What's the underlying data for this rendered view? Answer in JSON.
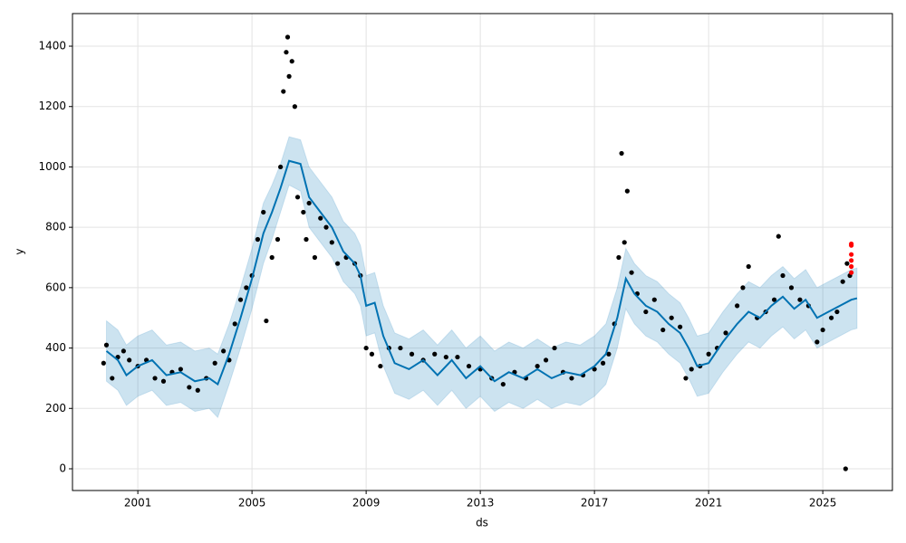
{
  "chart_data": {
    "type": "forecast",
    "xlabel": "ds",
    "ylabel": "y",
    "xlim": [
      1998.71,
      2027.44
    ],
    "ylim": [
      -72,
      1508
    ],
    "xticks": [
      2001,
      2005,
      2009,
      2013,
      2017,
      2021,
      2025
    ],
    "yticks": [
      0,
      200,
      400,
      600,
      800,
      1000,
      1200,
      1400
    ],
    "grid": true,
    "line_color": "#0072b2",
    "band_color": "#0072b2",
    "point_color": "#000000",
    "future_color": "#ff0000",
    "x": [
      1999.9,
      2000.3,
      2000.6,
      2001.0,
      2001.5,
      2002.0,
      2002.5,
      2003.0,
      2003.5,
      2003.8,
      2004.2,
      2004.6,
      2005.0,
      2005.4,
      2005.7,
      2006.0,
      2006.3,
      2006.7,
      2007.0,
      2007.4,
      2007.8,
      2008.2,
      2008.6,
      2008.8,
      2009.0,
      2009.3,
      2009.6,
      2010.0,
      2010.5,
      2011.0,
      2011.5,
      2012.0,
      2012.5,
      2013.0,
      2013.5,
      2014.0,
      2014.5,
      2015.0,
      2015.5,
      2016.0,
      2016.5,
      2017.0,
      2017.4,
      2017.8,
      2018.1,
      2018.4,
      2018.8,
      2019.2,
      2019.6,
      2020.0,
      2020.3,
      2020.6,
      2021.0,
      2021.5,
      2022.0,
      2022.4,
      2022.8,
      2023.2,
      2023.6,
      2024.0,
      2024.4,
      2024.8,
      2025.2,
      2025.6,
      2026.0,
      2026.2
    ],
    "yhat": [
      390,
      360,
      310,
      340,
      360,
      310,
      320,
      290,
      300,
      280,
      380,
      500,
      630,
      780,
      850,
      930,
      1020,
      1010,
      900,
      850,
      800,
      720,
      680,
      640,
      540,
      550,
      440,
      350,
      330,
      360,
      310,
      360,
      300,
      340,
      290,
      320,
      300,
      330,
      300,
      320,
      310,
      340,
      380,
      500,
      630,
      580,
      540,
      520,
      480,
      450,
      400,
      340,
      350,
      420,
      480,
      520,
      500,
      540,
      570,
      530,
      560,
      500,
      520,
      540,
      560,
      565
    ],
    "lower": [
      290,
      260,
      210,
      240,
      260,
      210,
      220,
      190,
      200,
      170,
      280,
      400,
      530,
      680,
      760,
      850,
      940,
      920,
      800,
      750,
      700,
      620,
      580,
      540,
      440,
      450,
      340,
      250,
      230,
      260,
      210,
      260,
      200,
      240,
      190,
      220,
      200,
      230,
      200,
      220,
      210,
      240,
      280,
      400,
      530,
      480,
      440,
      420,
      380,
      350,
      300,
      240,
      250,
      320,
      380,
      420,
      400,
      440,
      470,
      430,
      460,
      400,
      420,
      440,
      460,
      465
    ],
    "upper": [
      490,
      460,
      410,
      440,
      460,
      410,
      420,
      390,
      400,
      380,
      480,
      600,
      730,
      880,
      940,
      1010,
      1100,
      1090,
      1000,
      950,
      900,
      820,
      780,
      740,
      640,
      650,
      540,
      450,
      430,
      460,
      410,
      460,
      400,
      440,
      390,
      420,
      400,
      430,
      400,
      420,
      410,
      440,
      480,
      600,
      730,
      680,
      640,
      620,
      580,
      550,
      500,
      440,
      450,
      520,
      580,
      620,
      600,
      640,
      670,
      630,
      660,
      600,
      620,
      640,
      660,
      665
    ],
    "points": {
      "x": [
        1999.8,
        1999.9,
        2000.1,
        2000.3,
        2000.5,
        2000.7,
        2001.0,
        2001.3,
        2001.6,
        2001.9,
        2002.2,
        2002.5,
        2002.8,
        2003.1,
        2003.4,
        2003.7,
        2004.0,
        2004.2,
        2004.4,
        2004.6,
        2004.8,
        2005.0,
        2005.2,
        2005.4,
        2005.5,
        2005.7,
        2005.9,
        2006.0,
        2006.1,
        2006.2,
        2006.25,
        2006.3,
        2006.4,
        2006.5,
        2006.6,
        2006.8,
        2006.9,
        2007.0,
        2007.2,
        2007.4,
        2007.6,
        2007.8,
        2008.0,
        2008.3,
        2008.6,
        2008.8,
        2009.0,
        2009.2,
        2009.5,
        2009.8,
        2010.2,
        2010.6,
        2011.0,
        2011.4,
        2011.8,
        2012.2,
        2012.6,
        2013.0,
        2013.4,
        2013.8,
        2014.2,
        2014.6,
        2015.0,
        2015.3,
        2015.6,
        2015.9,
        2016.2,
        2016.6,
        2017.0,
        2017.3,
        2017.5,
        2017.7,
        2017.85,
        2017.95,
        2018.05,
        2018.15,
        2018.3,
        2018.5,
        2018.8,
        2019.1,
        2019.4,
        2019.7,
        2020.0,
        2020.2,
        2020.4,
        2020.7,
        2021.0,
        2021.3,
        2021.6,
        2022.0,
        2022.2,
        2022.4,
        2022.7,
        2023.0,
        2023.3,
        2023.45,
        2023.6,
        2023.9,
        2024.2,
        2024.5,
        2024.8,
        2025.0,
        2025.3,
        2025.5,
        2025.7,
        2025.8,
        2025.85,
        2025.95
      ],
      "values": [
        350,
        410,
        300,
        370,
        390,
        360,
        340,
        360,
        300,
        290,
        320,
        330,
        270,
        260,
        300,
        350,
        390,
        360,
        480,
        560,
        600,
        640,
        760,
        850,
        490,
        700,
        760,
        1000,
        1250,
        1380,
        1430,
        1300,
        1350,
        1200,
        900,
        850,
        760,
        880,
        700,
        830,
        800,
        750,
        680,
        700,
        680,
        640,
        400,
        380,
        340,
        400,
        400,
        380,
        360,
        380,
        370,
        370,
        340,
        330,
        300,
        280,
        320,
        300,
        340,
        360,
        400,
        320,
        300,
        310,
        330,
        350,
        380,
        480,
        700,
        1045,
        750,
        920,
        650,
        580,
        520,
        560,
        460,
        500,
        470,
        300,
        330,
        340,
        380,
        400,
        450,
        540,
        600,
        670,
        500,
        520,
        560,
        770,
        640,
        600,
        560,
        540,
        420,
        460,
        500,
        520,
        620,
        0,
        680,
        640
      ]
    },
    "future_points": {
      "x": [
        2026.0,
        2026.0,
        2026.0,
        2026.0,
        2026.0,
        2026.0
      ],
      "values": [
        650,
        670,
        690,
        710,
        740,
        745
      ]
    }
  }
}
